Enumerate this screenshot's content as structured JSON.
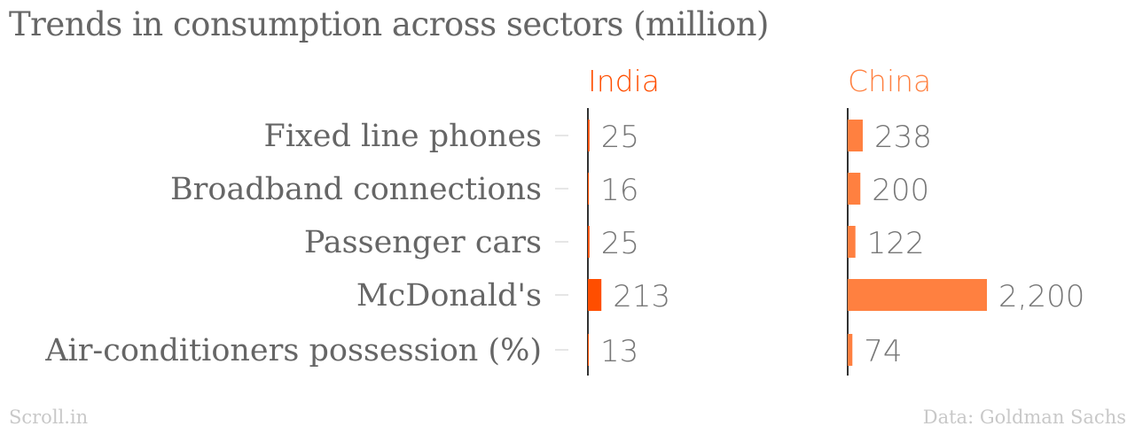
{
  "chart_data": {
    "type": "bar",
    "title": "Trends in consumption across sectors (million)",
    "categories": [
      "Fixed line phones",
      "Broadband connections",
      "Passenger cars",
      "McDonald's",
      "Air-conditioners possession (%)"
    ],
    "series": [
      {
        "name": "India",
        "values": [
          25,
          16,
          25,
          213,
          13
        ],
        "labels": [
          "25",
          "16",
          "25",
          "213",
          "13"
        ],
        "color": "#ff4e00"
      },
      {
        "name": "China",
        "values": [
          238,
          200,
          122,
          2200,
          74
        ],
        "labels": [
          "238",
          "200",
          "122",
          "2,200",
          "74"
        ],
        "color": "#ff8040"
      }
    ],
    "xlim": [
      0,
      2200
    ],
    "grid": false,
    "legend": "top"
  },
  "footer": {
    "source_left": "Scroll.in",
    "source_right": "Data: Goldman Sachs"
  }
}
